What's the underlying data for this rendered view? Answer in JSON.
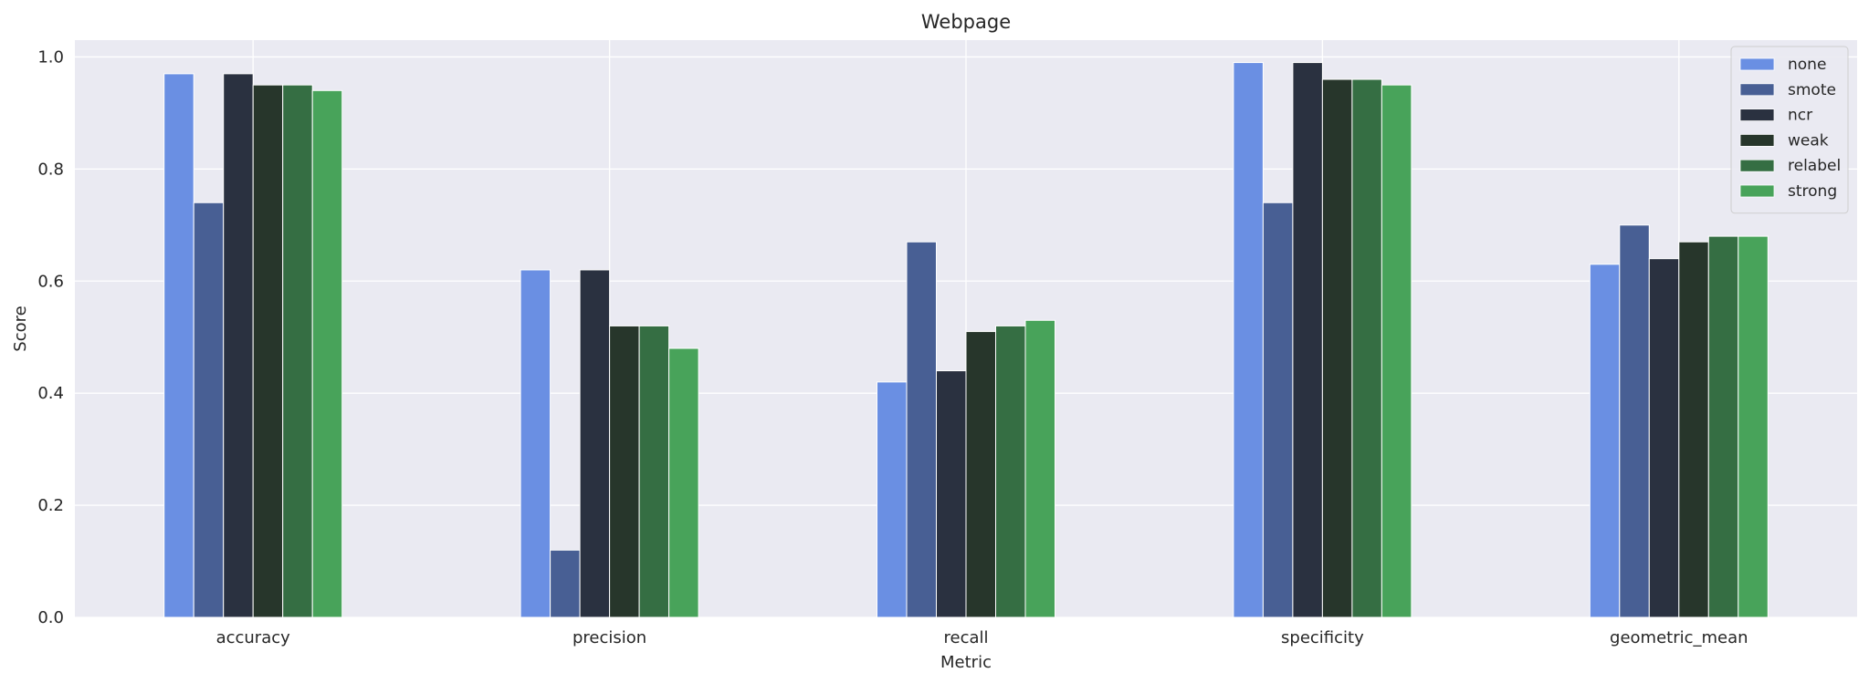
{
  "chart_data": {
    "type": "bar",
    "title": "Webpage",
    "xlabel": "Metric",
    "ylabel": "Score",
    "ylim": [
      0,
      1.03
    ],
    "yticks": [
      "0.0",
      "0.2",
      "0.4",
      "0.6",
      "0.8",
      "1.0"
    ],
    "grid": true,
    "legend_position": "top-right",
    "categories": [
      "accuracy",
      "precision",
      "recall",
      "specificity",
      "geometric_mean"
    ],
    "series": [
      {
        "name": "none",
        "color": "#6a8fe3",
        "values": [
          0.97,
          0.62,
          0.42,
          0.99,
          0.63
        ]
      },
      {
        "name": "smote",
        "color": "#485f94",
        "values": [
          0.74,
          0.12,
          0.67,
          0.74,
          0.7
        ]
      },
      {
        "name": "ncr",
        "color": "#2a3140",
        "values": [
          0.97,
          0.62,
          0.44,
          0.99,
          0.64
        ]
      },
      {
        "name": "weak",
        "color": "#27362b",
        "values": [
          0.95,
          0.52,
          0.51,
          0.96,
          0.67
        ]
      },
      {
        "name": "relabel",
        "color": "#356e43",
        "values": [
          0.95,
          0.52,
          0.52,
          0.96,
          0.68
        ]
      },
      {
        "name": "strong",
        "color": "#48a35a",
        "values": [
          0.94,
          0.48,
          0.53,
          0.95,
          0.68
        ]
      }
    ]
  }
}
